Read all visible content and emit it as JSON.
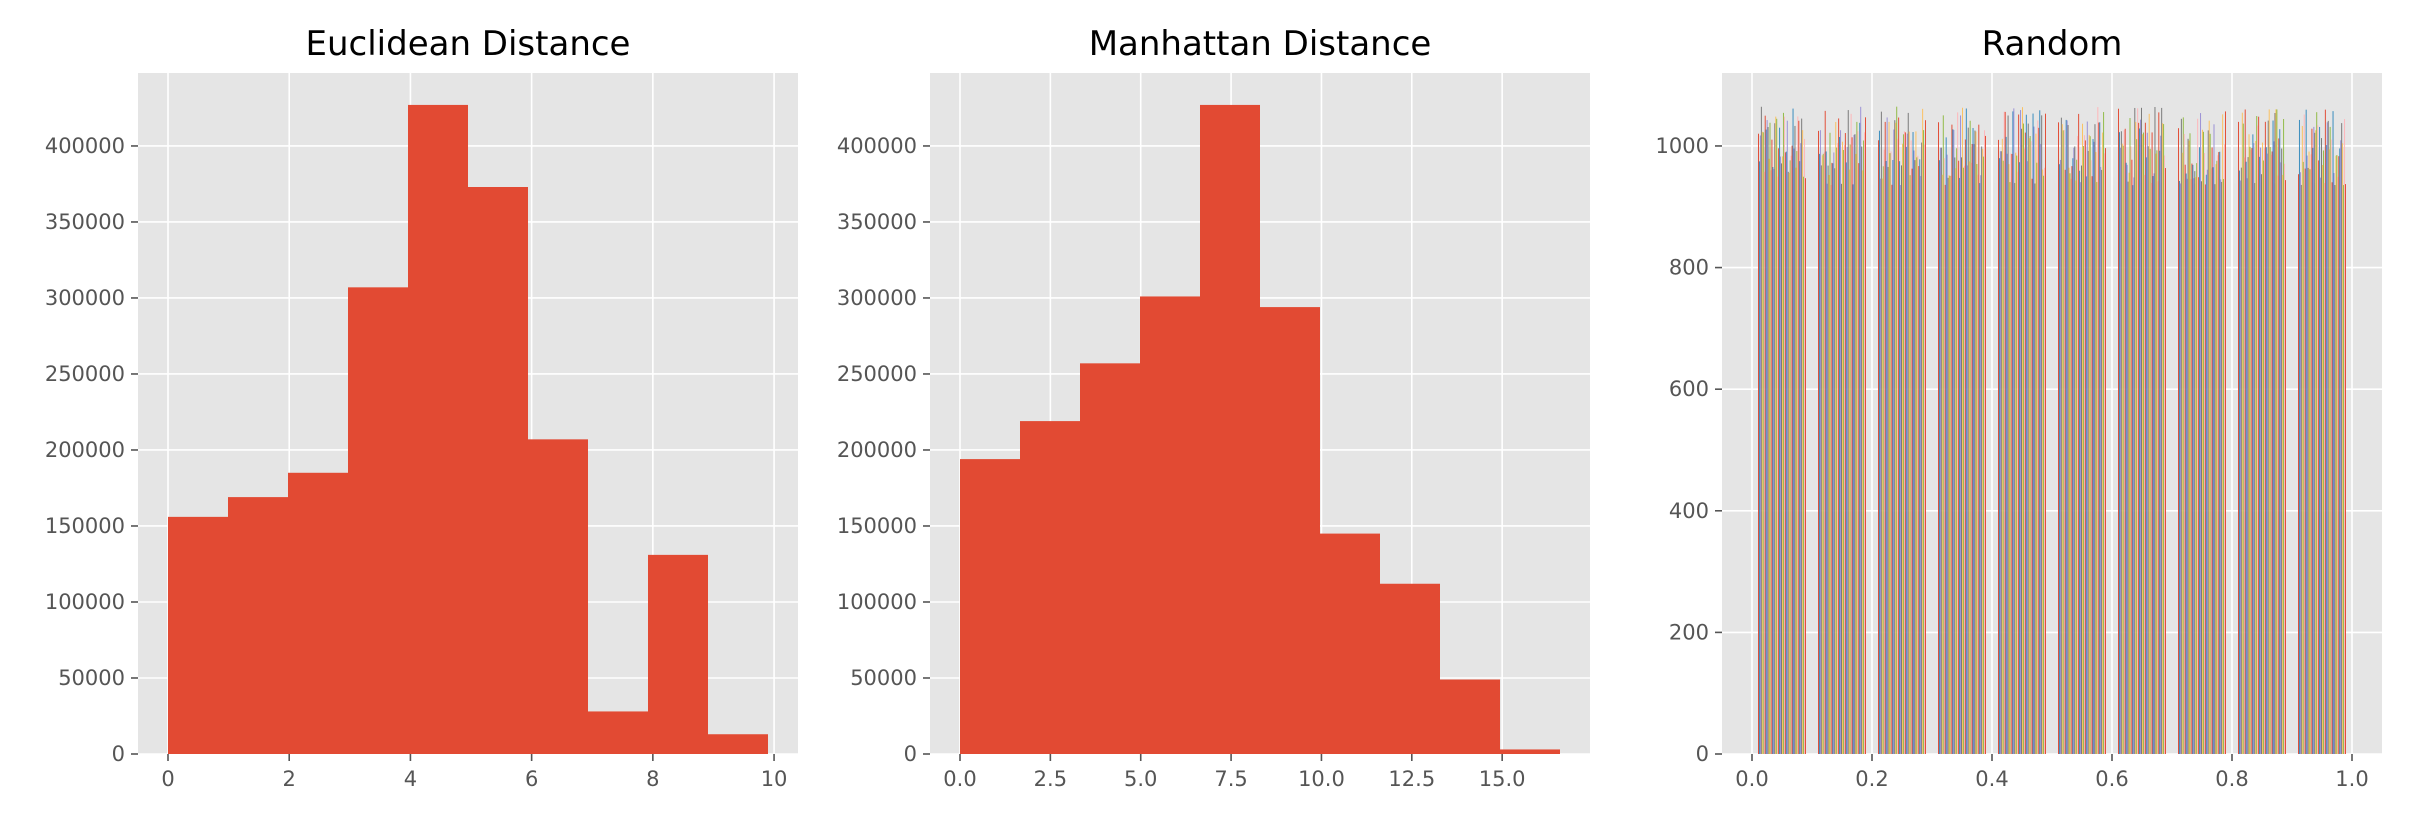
{
  "chart_data": [
    {
      "type": "histogram",
      "title": "Euclidean Distance",
      "xlabel": "",
      "ylabel": "",
      "color": "#e24a33",
      "bins": [
        {
          "x0": 0.0,
          "x1": 0.99,
          "count": 156000
        },
        {
          "x0": 0.99,
          "x1": 1.98,
          "count": 169000
        },
        {
          "x0": 1.98,
          "x1": 2.97,
          "count": 185000
        },
        {
          "x0": 2.97,
          "x1": 3.96,
          "count": 307000
        },
        {
          "x0": 3.96,
          "x1": 4.95,
          "count": 427000
        },
        {
          "x0": 4.95,
          "x1": 5.94,
          "count": 373000
        },
        {
          "x0": 5.94,
          "x1": 6.93,
          "count": 207000
        },
        {
          "x0": 6.93,
          "x1": 7.92,
          "count": 28000
        },
        {
          "x0": 7.92,
          "x1": 8.91,
          "count": 131000
        },
        {
          "x0": 8.91,
          "x1": 9.9,
          "count": 13000
        }
      ],
      "xlim": [
        -0.495,
        10.395
      ],
      "ylim": [
        0,
        448000
      ],
      "xticks": [
        0,
        2,
        4,
        6,
        8,
        10
      ],
      "xtick_labels": [
        "0",
        "2",
        "4",
        "6",
        "8",
        "10"
      ],
      "yticks": [
        0,
        50000,
        100000,
        150000,
        200000,
        250000,
        300000,
        350000,
        400000
      ],
      "ytick_labels": [
        "0",
        "50000",
        "100000",
        "150000",
        "200000",
        "250000",
        "300000",
        "350000",
        "400000"
      ],
      "grid": true
    },
    {
      "type": "histogram",
      "title": "Manhattan Distance",
      "xlabel": "",
      "ylabel": "",
      "color": "#e24a33",
      "bins": [
        {
          "x0": 0.0,
          "x1": 1.66,
          "count": 194000
        },
        {
          "x0": 1.66,
          "x1": 3.32,
          "count": 219000
        },
        {
          "x0": 3.32,
          "x1": 4.98,
          "count": 257000
        },
        {
          "x0": 4.98,
          "x1": 6.64,
          "count": 301000
        },
        {
          "x0": 6.64,
          "x1": 8.3,
          "count": 427000
        },
        {
          "x0": 8.3,
          "x1": 9.96,
          "count": 294000
        },
        {
          "x0": 9.96,
          "x1": 11.62,
          "count": 145000
        },
        {
          "x0": 11.62,
          "x1": 13.28,
          "count": 112000
        },
        {
          "x0": 13.28,
          "x1": 14.94,
          "count": 49000
        },
        {
          "x0": 14.94,
          "x1": 16.6,
          "count": 3000
        }
      ],
      "xlim": [
        -0.83,
        17.43
      ],
      "ylim": [
        0,
        448000
      ],
      "xticks": [
        0,
        2.5,
        5,
        7.5,
        10,
        12.5,
        15
      ],
      "xtick_labels": [
        "0.0",
        "2.5",
        "5.0",
        "7.5",
        "10.0",
        "12.5",
        "15.0"
      ],
      "yticks": [
        0,
        50000,
        100000,
        150000,
        200000,
        250000,
        300000,
        350000,
        400000
      ],
      "ytick_labels": [
        "0",
        "50000",
        "100000",
        "150000",
        "200000",
        "250000",
        "300000",
        "350000",
        "400000"
      ],
      "grid": true
    },
    {
      "type": "histogram",
      "title": "Random",
      "xlabel": "",
      "ylabel": "",
      "series_count": 50,
      "colors": [
        "#e24a33",
        "#348abd",
        "#988ed5",
        "#777777",
        "#fbc15e",
        "#8eba42",
        "#ffb5b8"
      ],
      "bin_edges": [
        0.0,
        0.1,
        0.2,
        0.3,
        0.4,
        0.5,
        0.6,
        0.7,
        0.8,
        0.9,
        1.0
      ],
      "count_range": [
        935,
        1065
      ],
      "typical_count": 1000,
      "xlim": [
        -0.05,
        1.05
      ],
      "ylim": [
        0,
        1120
      ],
      "xticks": [
        0,
        0.2,
        0.4,
        0.6,
        0.8,
        1.0
      ],
      "xtick_labels": [
        "0.0",
        "0.2",
        "0.4",
        "0.6",
        "0.8",
        "1.0"
      ],
      "yticks": [
        0,
        200,
        400,
        600,
        800,
        1000
      ],
      "ytick_labels": [
        "0",
        "200",
        "400",
        "600",
        "800",
        "1000"
      ],
      "grid": true
    }
  ]
}
